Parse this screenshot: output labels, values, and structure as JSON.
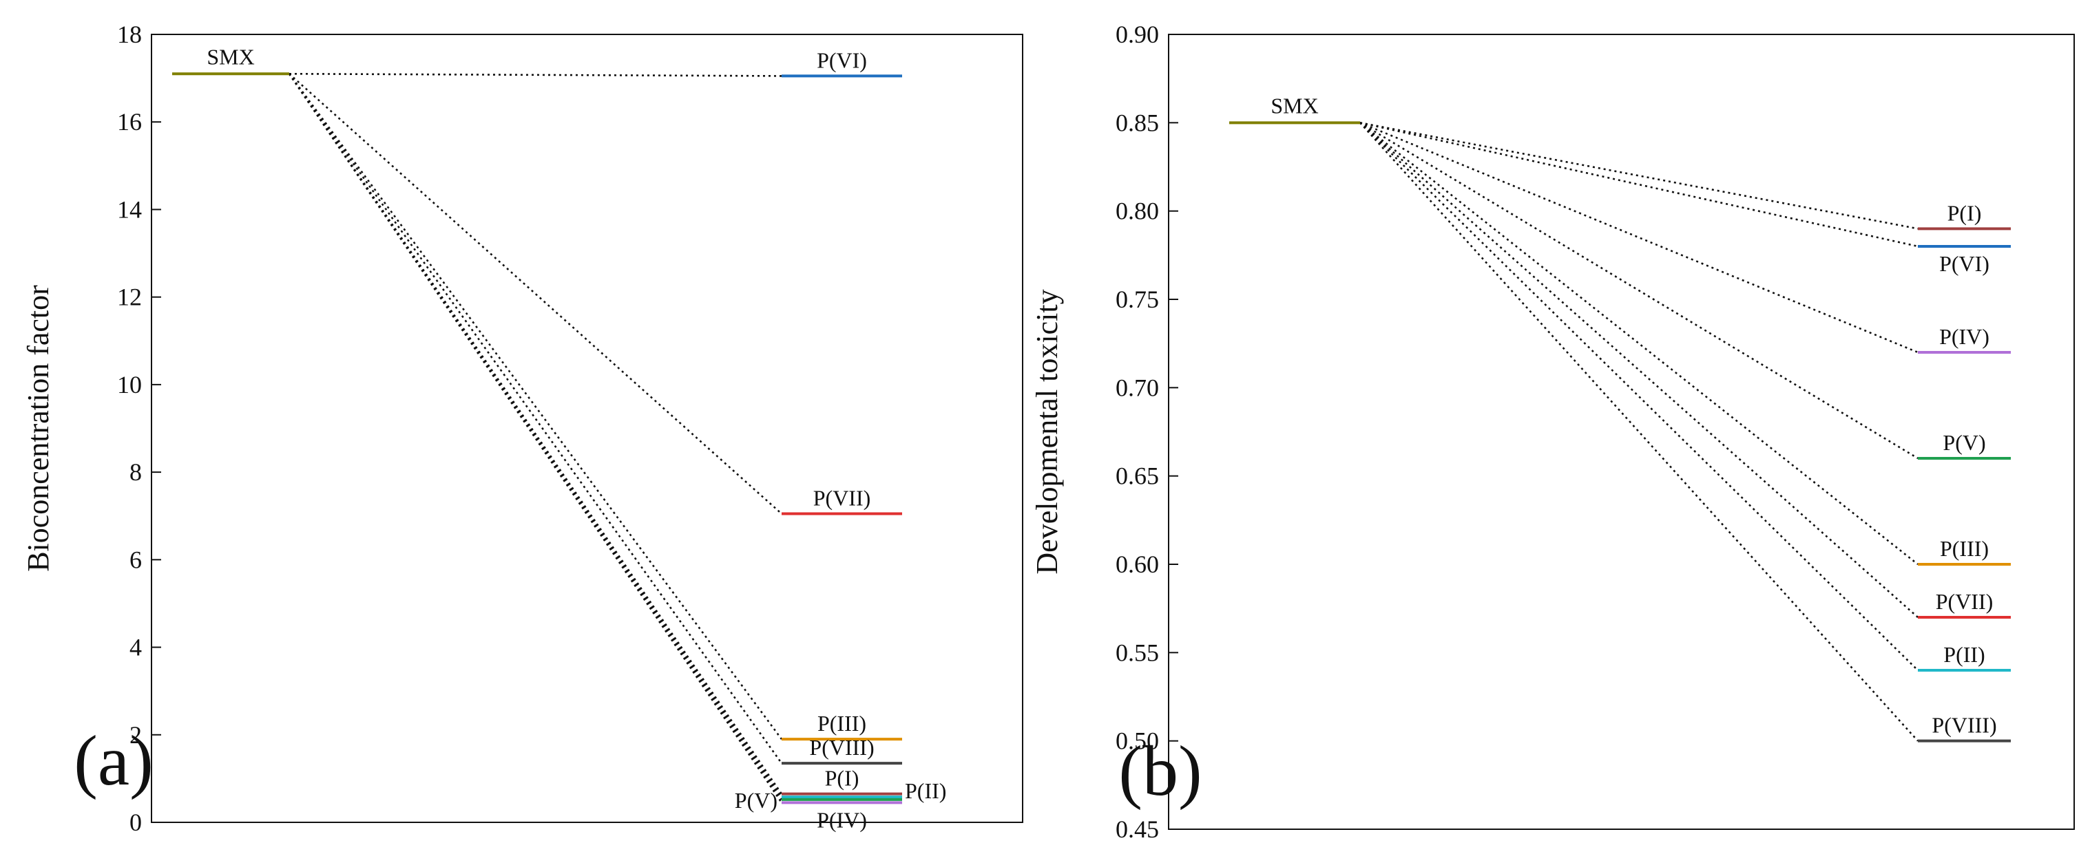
{
  "chart_data": [
    {
      "type": "energy-level",
      "panel_label": "(a)",
      "ylabel": "Bioconcentration factor",
      "xlabel": "",
      "ylim": [
        0,
        18
      ],
      "yticks": [
        0,
        2,
        4,
        6,
        8,
        10,
        12,
        14,
        16,
        18
      ],
      "ytick_labels": [
        "0",
        "2",
        "4",
        "6",
        "8",
        "10",
        "12",
        "14",
        "16",
        "18"
      ],
      "grid": false,
      "parent": {
        "name": "SMX",
        "value": 17.1,
        "color": "#808000"
      },
      "products": [
        {
          "name": "P(VI)",
          "value": 17.05,
          "color": "#1f6fc0",
          "label_side": "above"
        },
        {
          "name": "P(VII)",
          "value": 7.05,
          "color": "#e03030",
          "label_side": "above"
        },
        {
          "name": "P(III)",
          "value": 1.9,
          "color": "#e09000",
          "label_side": "above"
        },
        {
          "name": "P(VIII)",
          "value": 1.35,
          "color": "#444444",
          "label_side": "above"
        },
        {
          "name": "P(I)",
          "value": 0.65,
          "color": "#a04040",
          "label_side": "above"
        },
        {
          "name": "P(II)",
          "value": 0.58,
          "color": "#20b8c8",
          "label_side": "right"
        },
        {
          "name": "P(V)",
          "value": 0.52,
          "color": "#20a050",
          "label_side": "left"
        },
        {
          "name": "P(IV)",
          "value": 0.45,
          "color": "#b070d8",
          "label_side": "below"
        }
      ]
    },
    {
      "type": "energy-level",
      "panel_label": "(b)",
      "ylabel": "Developmental toxicity",
      "xlabel": "",
      "ylim": [
        0.45,
        0.9
      ],
      "yticks": [
        0.45,
        0.5,
        0.55,
        0.6,
        0.65,
        0.7,
        0.75,
        0.8,
        0.85,
        0.9
      ],
      "ytick_labels": [
        "0.45",
        "0.50",
        "0.55",
        "0.60",
        "0.65",
        "0.70",
        "0.75",
        "0.80",
        "0.85",
        "0.90"
      ],
      "grid": false,
      "parent": {
        "name": "SMX",
        "value": 0.85,
        "color": "#808000"
      },
      "products": [
        {
          "name": "P(I)",
          "value": 0.79,
          "color": "#a04040",
          "label_side": "above"
        },
        {
          "name": "P(VI)",
          "value": 0.78,
          "color": "#1f6fc0",
          "label_side": "below"
        },
        {
          "name": "P(IV)",
          "value": 0.72,
          "color": "#b070d8",
          "label_side": "above"
        },
        {
          "name": "P(V)",
          "value": 0.66,
          "color": "#20a050",
          "label_side": "above"
        },
        {
          "name": "P(III)",
          "value": 0.6,
          "color": "#e09000",
          "label_side": "above"
        },
        {
          "name": "P(VII)",
          "value": 0.57,
          "color": "#e03030",
          "label_side": "above"
        },
        {
          "name": "P(II)",
          "value": 0.54,
          "color": "#20b8c8",
          "label_side": "above"
        },
        {
          "name": "P(VIII)",
          "value": 0.5,
          "color": "#444444",
          "label_side": "above"
        }
      ]
    }
  ]
}
